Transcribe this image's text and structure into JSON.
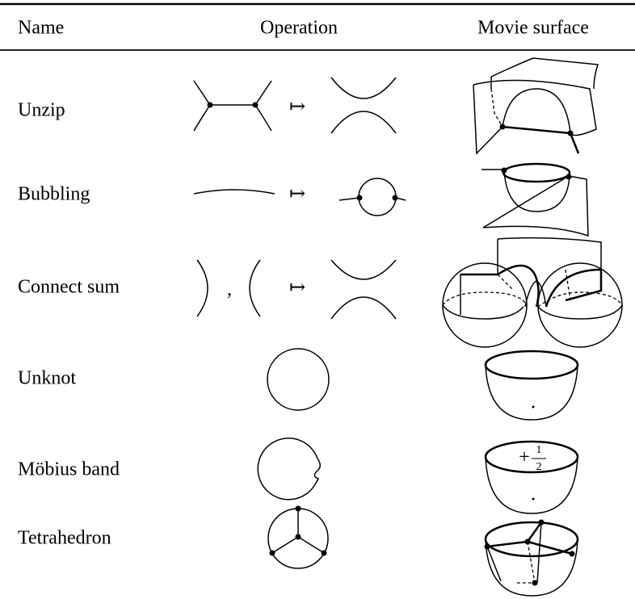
{
  "table": {
    "header": [
      "Name",
      "Operation",
      "Movie surface"
    ],
    "rows": [
      {
        "name": "Unzip"
      },
      {
        "name": "Bubbling"
      },
      {
        "name": "Connect sum"
      },
      {
        "name": "Unknot"
      },
      {
        "name": "Möbius band"
      },
      {
        "name": "Tetrahedron"
      }
    ],
    "maps_to": "↦",
    "separator": ",",
    "mobius_twist": {
      "sign": "+",
      "numerator": "1",
      "denominator": "2"
    }
  }
}
